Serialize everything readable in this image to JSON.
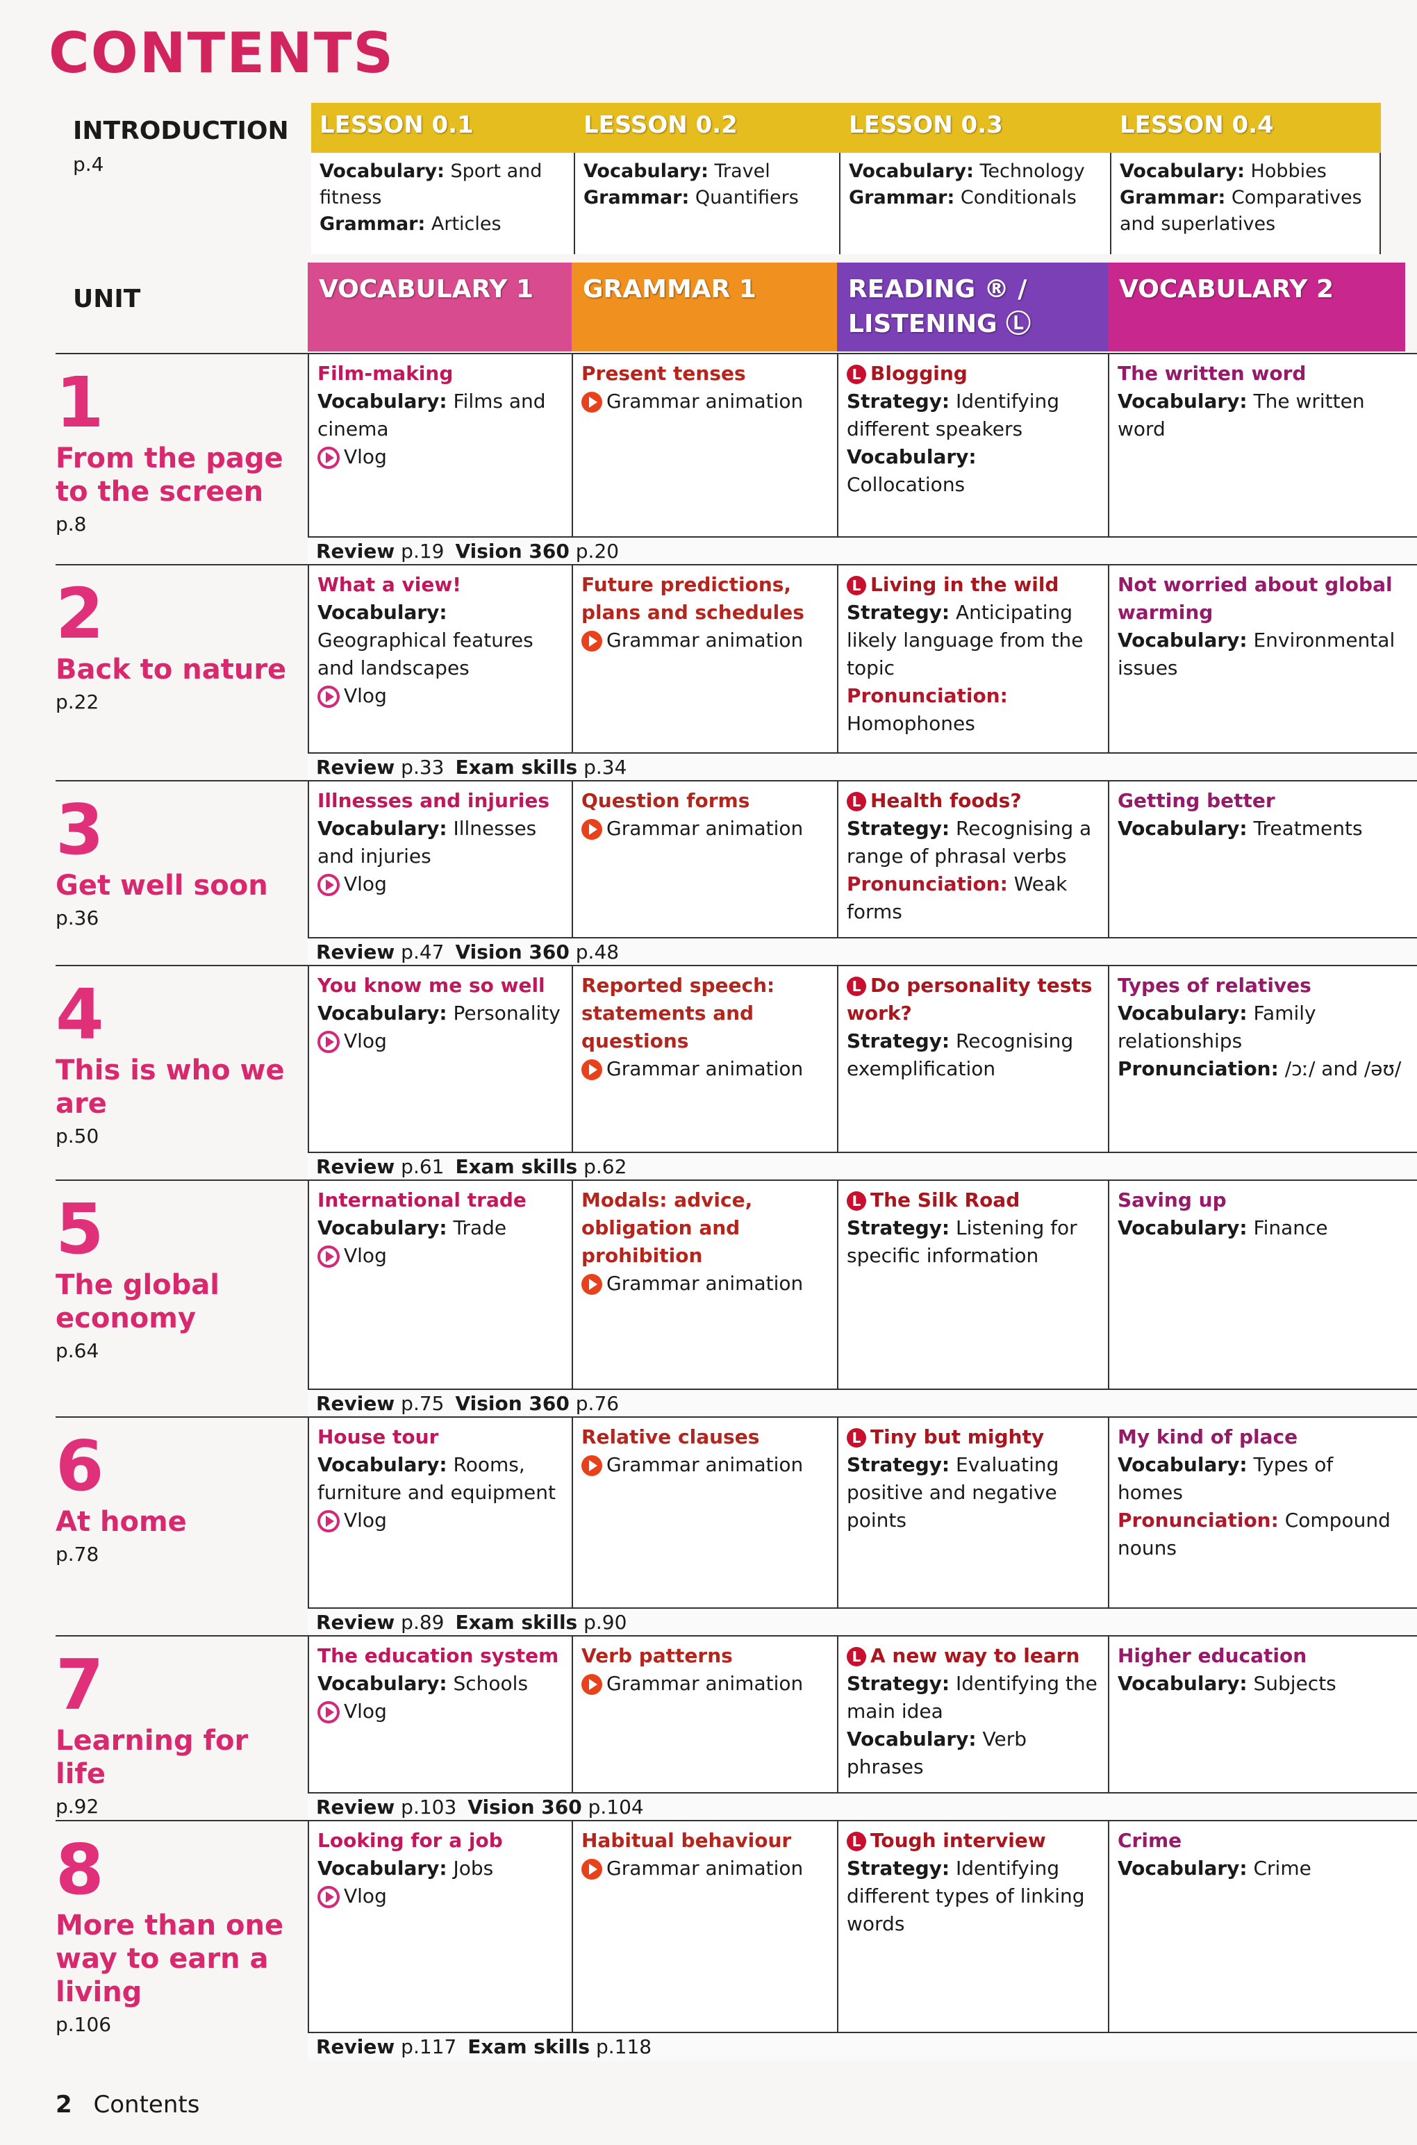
{
  "title": "CONTENTS",
  "intro": {
    "label": "INTRODUCTION",
    "page": "p.4",
    "lessons": [
      {
        "head": "LESSON 0.1",
        "lines": [
          {
            "b": "Vocabulary:",
            "t": " Sport and fitness"
          },
          {
            "b": "Grammar:",
            "t": " Articles"
          }
        ]
      },
      {
        "head": "LESSON 0.2",
        "lines": [
          {
            "b": "Vocabulary:",
            "t": " Travel"
          },
          {
            "b": "Grammar:",
            "t": " Quantifiers"
          }
        ]
      },
      {
        "head": "LESSON 0.3",
        "lines": [
          {
            "b": "Vocabulary:",
            "t": " Technology"
          },
          {
            "b": "Grammar:",
            "t": " Conditionals"
          }
        ]
      },
      {
        "head": "LESSON 0.4",
        "lines": [
          {
            "b": "Vocabulary:",
            "t": " Hobbies"
          },
          {
            "b": "Grammar:",
            "t": " Comparatives and superlatives"
          }
        ]
      }
    ]
  },
  "unit_label": "UNIT",
  "columns": [
    {
      "head": "VOCABULARY 1",
      "color": "#d84b8e"
    },
    {
      "head": "GRAMMAR 1",
      "color": "#f0901e"
    },
    {
      "head": "READING ® / LISTENING Ⓛ",
      "color": "#7b3fb6"
    },
    {
      "head": "VOCABULARY 2",
      "color": "#c8288e"
    }
  ],
  "title_colors": [
    "#c0185c",
    "#b3261e",
    "#a8161e",
    "#951a6a"
  ],
  "vlog": "Vlog",
  "grammar_animation": "Grammar animation",
  "units": [
    {
      "num": "1",
      "title": "From the page to the screen",
      "page": "p.8",
      "cells": [
        {
          "title": "Film-making",
          "lines": [
            {
              "b": "Vocabulary:",
              "t": " Films and cinema"
            }
          ],
          "link": "vlog"
        },
        {
          "title": "Present tenses",
          "lines": [],
          "link": "grammar"
        },
        {
          "title": "Blogging",
          "L": true,
          "lines": [
            {
              "b": "Strategy:",
              "t": " Identifying different speakers"
            },
            {
              "b": "Vocabulary:",
              "t": " Collocations"
            }
          ]
        },
        {
          "title": "The written word",
          "lines": [
            {
              "b": "Vocabulary:",
              "t": " The written word"
            }
          ]
        }
      ],
      "review": [
        {
          "b": "Review",
          "t": " p.19"
        },
        {
          "b": "Vision 360",
          "t": " p.20"
        }
      ]
    },
    {
      "num": "2",
      "title": "Back to nature",
      "page": "p.22",
      "cells": [
        {
          "title": "What a view!",
          "lines": [
            {
              "b": "Vocabulary:",
              "t": " Geographical features and landscapes"
            }
          ],
          "link": "vlog"
        },
        {
          "title": "Future predictions, plans and schedules",
          "lines": [],
          "link": "grammar"
        },
        {
          "title": "Living in the wild",
          "L": true,
          "lines": [
            {
              "b": "Strategy:",
              "t": " Anticipating likely language from the topic"
            },
            {
              "p": "Pronunciation:",
              "t": " Homophones"
            }
          ]
        },
        {
          "title": "Not worried about global warming",
          "lines": [
            {
              "b": "Vocabulary:",
              "t": " Environmental issues"
            }
          ]
        }
      ],
      "review": [
        {
          "b": "Review",
          "t": " p.33"
        },
        {
          "b": "Exam skills",
          "t": " p.34"
        }
      ]
    },
    {
      "num": "3",
      "title": "Get well soon",
      "page": "p.36",
      "cells": [
        {
          "title": "Illnesses and injuries",
          "lines": [
            {
              "b": "Vocabulary:",
              "t": " Illnesses and injuries"
            }
          ],
          "link": "vlog"
        },
        {
          "title": "Question forms",
          "lines": [],
          "link": "grammar"
        },
        {
          "title": "Health foods?",
          "L": true,
          "lines": [
            {
              "b": "Strategy:",
              "t": " Recognising a range of phrasal verbs"
            },
            {
              "p": "Pronunciation:",
              "t": " Weak forms"
            }
          ]
        },
        {
          "title": "Getting better",
          "lines": [
            {
              "b": "Vocabulary:",
              "t": " Treatments"
            }
          ]
        }
      ],
      "review": [
        {
          "b": "Review",
          "t": " p.47"
        },
        {
          "b": "Vision 360",
          "t": " p.48"
        }
      ]
    },
    {
      "num": "4",
      "title": "This is who we are",
      "page": "p.50",
      "cells": [
        {
          "title": "You know me so well",
          "lines": [
            {
              "b": "Vocabulary:",
              "t": " Personality"
            }
          ],
          "link": "vlog"
        },
        {
          "title": "Reported speech: statements and questions",
          "lines": [],
          "link": "grammar"
        },
        {
          "title": "Do personality tests work?",
          "L": true,
          "lines": [
            {
              "b": "Strategy:",
              "t": " Recognising exemplification"
            }
          ]
        },
        {
          "title": "Types of relatives",
          "lines": [
            {
              "b": "Vocabulary:",
              "t": " Family relationships"
            },
            {
              "b": "Pronunciation:",
              "t": " /ɔː/ and /əʊ/"
            }
          ]
        }
      ],
      "review": [
        {
          "b": "Review",
          "t": " p.61"
        },
        {
          "b": "Exam skills",
          "t": " p.62"
        }
      ]
    },
    {
      "num": "5",
      "title": "The global economy",
      "page": "p.64",
      "cells": [
        {
          "title": "International trade",
          "lines": [
            {
              "b": "Vocabulary:",
              "t": " Trade"
            }
          ],
          "link": "vlog"
        },
        {
          "title": "Modals: advice, obligation and prohibition",
          "lines": [],
          "link": "grammar"
        },
        {
          "title": "The Silk Road",
          "L": true,
          "lines": [
            {
              "b": "Strategy:",
              "t": " Listening for specific information"
            }
          ]
        },
        {
          "title": "Saving up",
          "lines": [
            {
              "b": "Vocabulary:",
              "t": " Finance"
            }
          ]
        }
      ],
      "review": [
        {
          "b": "Review",
          "t": " p.75"
        },
        {
          "b": "Vision 360",
          "t": " p.76"
        }
      ]
    },
    {
      "num": "6",
      "title": "At home",
      "page": "p.78",
      "cells": [
        {
          "title": "House tour",
          "lines": [
            {
              "b": "Vocabulary:",
              "t": " Rooms, furniture and equipment"
            }
          ],
          "link": "vlog"
        },
        {
          "title": "Relative clauses",
          "lines": [],
          "link": "grammar"
        },
        {
          "title": "Tiny but mighty",
          "L": true,
          "lines": [
            {
              "b": "Strategy:",
              "t": " Evaluating positive and negative points"
            }
          ]
        },
        {
          "title": "My kind of place",
          "lines": [
            {
              "b": "Vocabulary:",
              "t": " Types of homes"
            },
            {
              "p": "Pronunciation:",
              "t": " Compound nouns"
            }
          ]
        }
      ],
      "review": [
        {
          "b": "Review",
          "t": " p.89"
        },
        {
          "b": "Exam skills",
          "t": " p.90"
        }
      ]
    },
    {
      "num": "7",
      "title": "Learning for life",
      "page": "p.92",
      "cells": [
        {
          "title": "The education system",
          "lines": [
            {
              "b": "Vocabulary:",
              "t": " Schools"
            }
          ],
          "link": "vlog"
        },
        {
          "title": "Verb patterns",
          "lines": [],
          "link": "grammar"
        },
        {
          "title": "A new way to learn",
          "L": true,
          "lines": [
            {
              "b": "Strategy:",
              "t": " Identifying the main idea"
            },
            {
              "b": "Vocabulary:",
              "t": " Verb phrases"
            }
          ]
        },
        {
          "title": "Higher education",
          "lines": [
            {
              "b": "Vocabulary:",
              "t": " Subjects"
            }
          ]
        }
      ],
      "review": [
        {
          "b": "Review",
          "t": " p.103"
        },
        {
          "b": "Vision 360",
          "t": " p.104"
        }
      ]
    },
    {
      "num": "8",
      "title": "More than one way to earn a living",
      "page": "p.106",
      "cells": [
        {
          "title": "Looking for a job",
          "lines": [
            {
              "b": "Vocabulary:",
              "t": " Jobs"
            }
          ],
          "link": "vlog"
        },
        {
          "title": "Habitual behaviour",
          "lines": [],
          "link": "grammar"
        },
        {
          "title": "Tough interview",
          "L": true,
          "lines": [
            {
              "b": "Strategy:",
              "t": " Identifying different types of linking words"
            }
          ]
        },
        {
          "title": "Crime",
          "lines": [
            {
              "b": "Vocabulary:",
              "t": " Crime"
            }
          ]
        }
      ],
      "review": [
        {
          "b": "Review",
          "t": " p.117"
        },
        {
          "b": "Exam skills",
          "t": " p.118"
        }
      ]
    }
  ],
  "footer": {
    "page": "2",
    "label": "Contents"
  }
}
